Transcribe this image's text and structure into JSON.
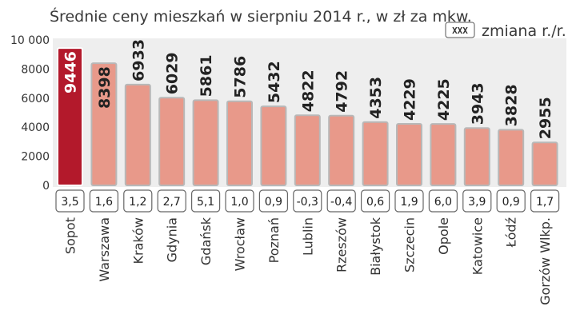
{
  "chart_data": {
    "type": "bar",
    "title": "Średnie ceny mieszkań w sierpniu 2014 r., w zł za mkw.",
    "legend": {
      "box_text": "XXX",
      "label": "zmiana r./r."
    },
    "ylim": [
      0,
      10000
    ],
    "yticks": [
      0,
      2000,
      4000,
      6000,
      8000,
      10000
    ],
    "ytick_labels": [
      "0",
      "2000",
      "4000",
      "6000",
      "8000",
      "10 000"
    ],
    "categories": [
      "Sopot",
      "Warszawa",
      "Kraków",
      "Gdynia",
      "Gdańsk",
      "Wrocław",
      "Poznań",
      "Lublin",
      "Rzeszów",
      "Białystok",
      "Szczecin",
      "Opole",
      "Katowice",
      "Łódź",
      "Gorzów Wlkp."
    ],
    "values": [
      9446,
      8398,
      6933,
      6029,
      5861,
      5786,
      5432,
      4822,
      4792,
      4353,
      4229,
      4225,
      3943,
      3828,
      2955
    ],
    "changes": [
      "3,5",
      "1,6",
      "1,2",
      "2,7",
      "5,1",
      "1,0",
      "0,9",
      "-0,3",
      "-0,4",
      "0,6",
      "1,9",
      "6,0",
      "3,9",
      "0,9",
      "1,7"
    ],
    "colors": {
      "highlight": "#b3192b",
      "bar": "#e8998a",
      "bar_edge": "#b8b8b8",
      "plot_bg": "#eeeeee"
    }
  }
}
